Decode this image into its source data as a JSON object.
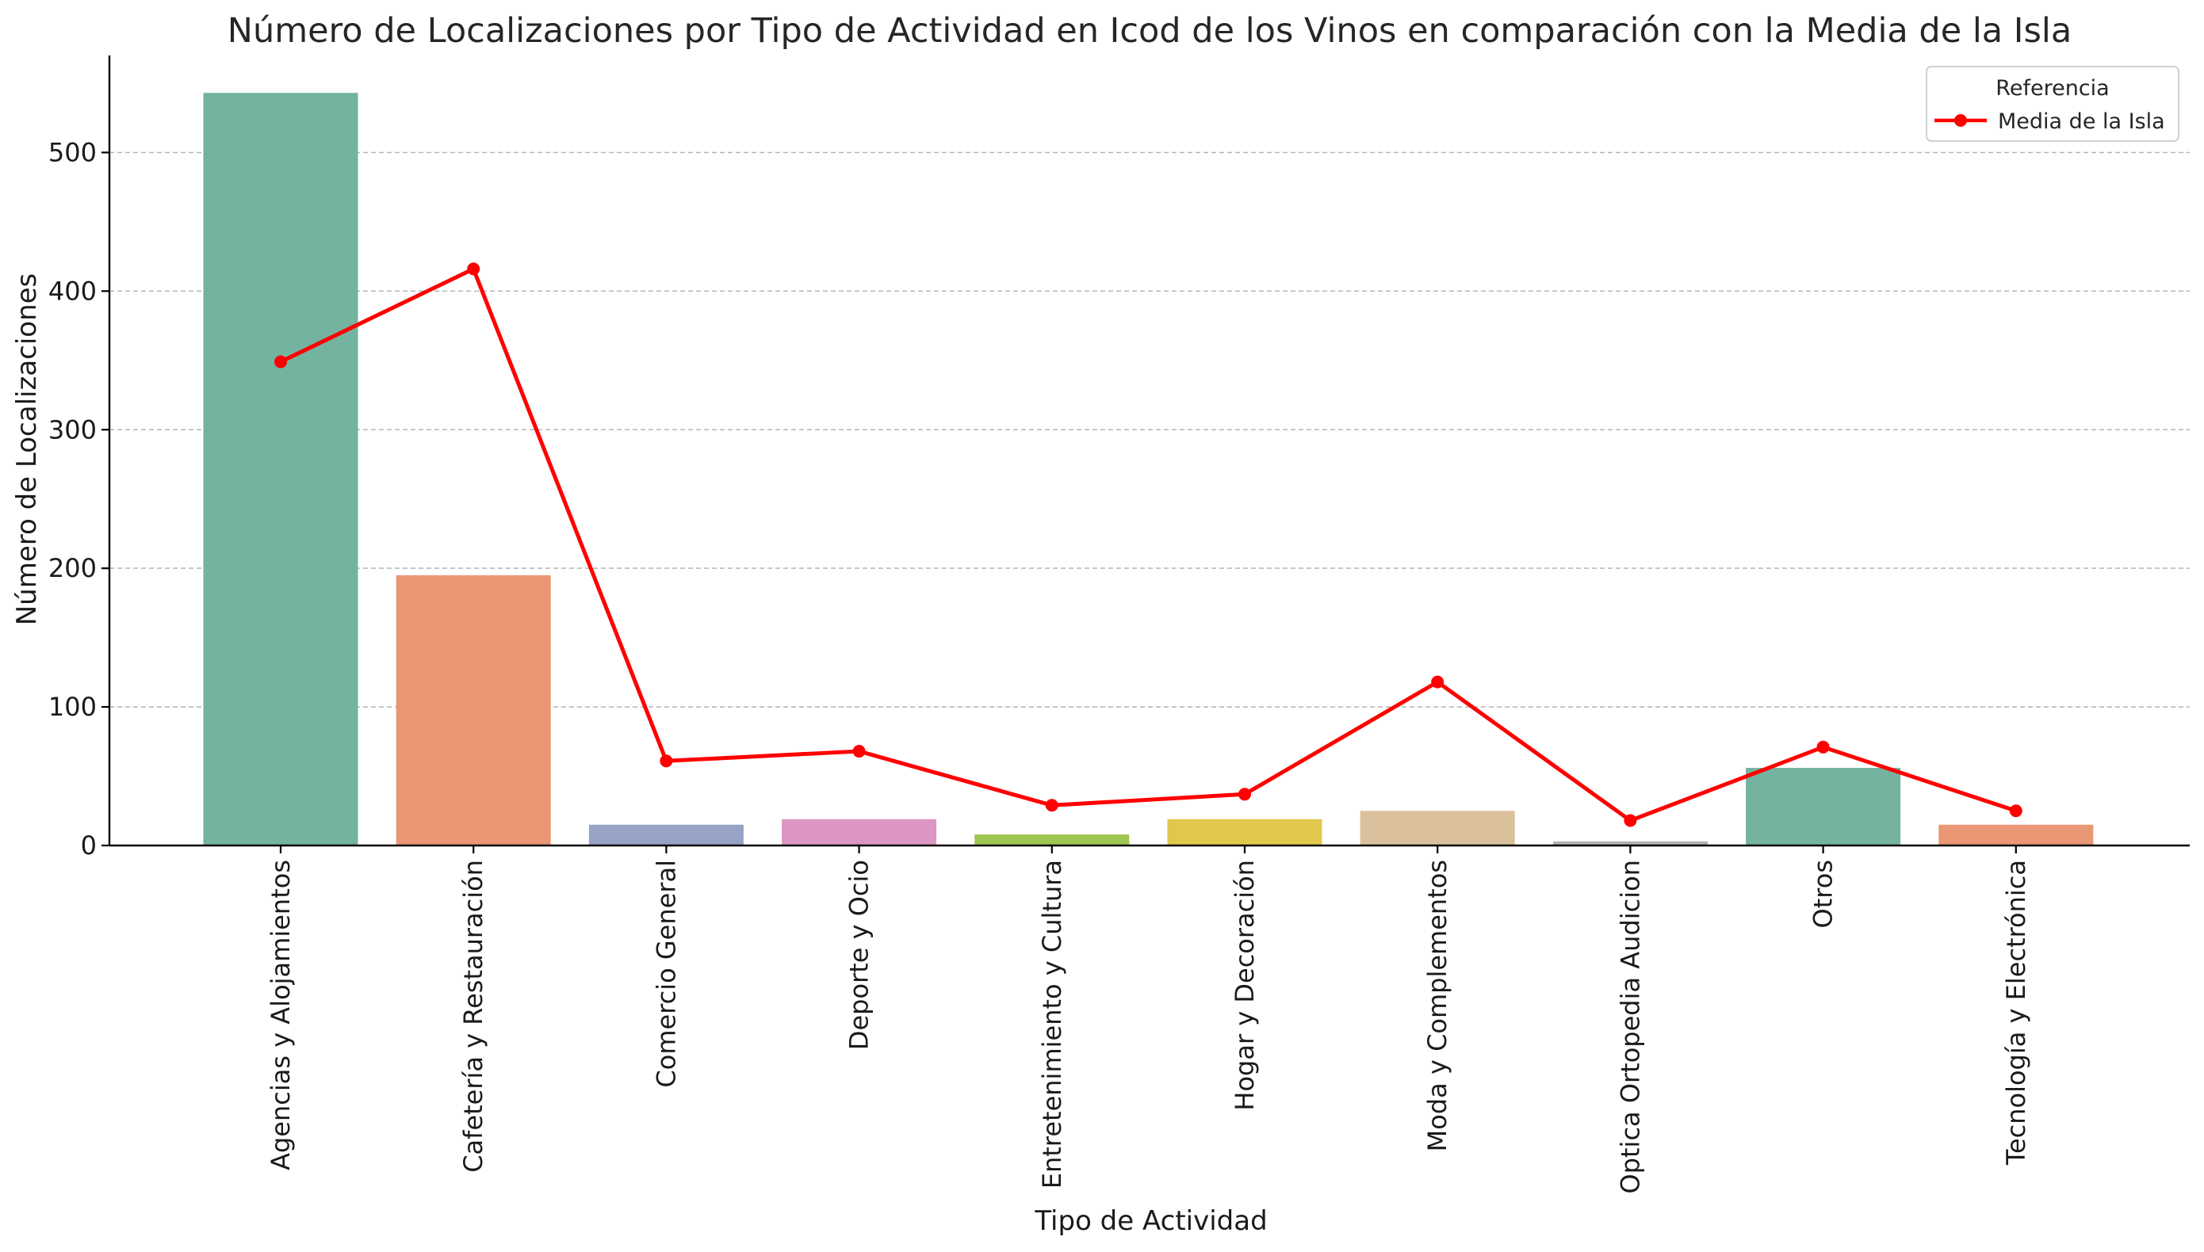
{
  "chart_data": {
    "type": "bar",
    "title": "Número de Localizaciones por Tipo de Actividad en Icod de los Vinos en comparación con la Media de la Isla",
    "xlabel": "Tipo de Actividad",
    "ylabel": "Número de Localizaciones",
    "categories": [
      "Agencias y Alojamientos",
      "Cafetería y Restauración",
      "Comercio General",
      "Deporte y Ocio",
      "Entretenimiento y Cultura",
      "Hogar y Decoración",
      "Moda y Complementos",
      "Optica Ortopedia Audicion",
      "Otros",
      "Tecnología y Electrónica"
    ],
    "bar_values": [
      543,
      195,
      15,
      19,
      8,
      19,
      25,
      3,
      56,
      15
    ],
    "bar_colors": [
      "#73b3a0",
      "#e99775",
      "#97a3c5",
      "#db97c2",
      "#9fc653",
      "#e1c74b",
      "#dbc19b",
      "#b3b3b3",
      "#73b3a0",
      "#e99775"
    ],
    "line_series": {
      "name": "Media de la Isla",
      "values": [
        349,
        416,
        61,
        68,
        29,
        37,
        118,
        18,
        71,
        25
      ],
      "color": "#ff0000"
    },
    "ylim": [
      0,
      570
    ],
    "yticks": [
      0,
      100,
      200,
      300,
      400,
      500
    ],
    "grid": "horizontal dashed",
    "legend": {
      "title": "Referencia",
      "placement": "top-right"
    }
  }
}
